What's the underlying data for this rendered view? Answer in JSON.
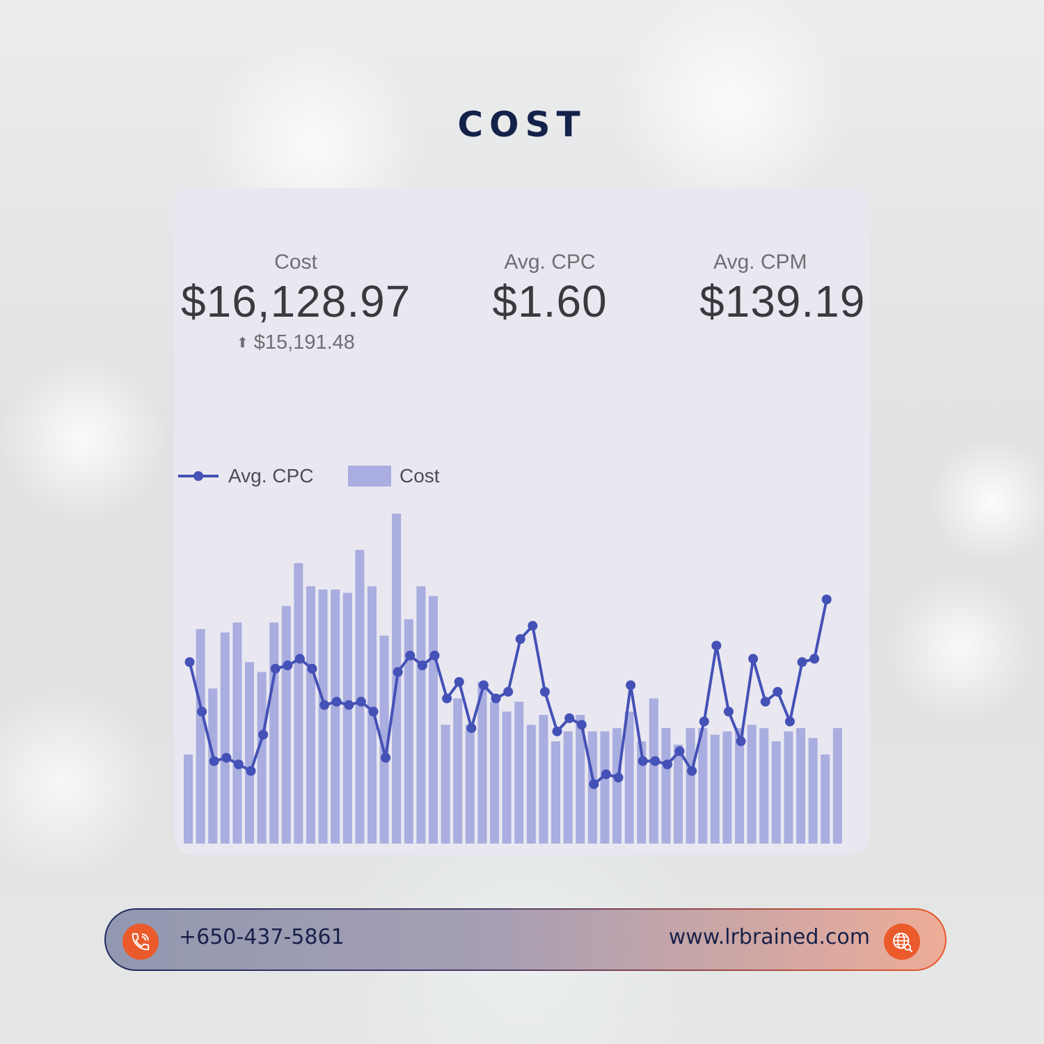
{
  "title": "COST",
  "metrics": {
    "cost": {
      "label": "Cost",
      "value": "$16,128.97",
      "compare": "$15,191.48"
    },
    "avg_cpc": {
      "label": "Avg. CPC",
      "value": "$1.60"
    },
    "avg_cpm": {
      "label": "Avg. CPM",
      "value": "$139.19"
    }
  },
  "legend": {
    "line_label": "Avg. CPC",
    "bar_label": "Cost"
  },
  "colors": {
    "bar": "#a9addf",
    "line": "#4451b6",
    "title": "#14224a",
    "accent": "#ea5a2b"
  },
  "chart_data": {
    "type": "bar",
    "x": [
      1,
      2,
      3,
      4,
      5,
      6,
      7,
      8,
      9,
      10,
      11,
      12,
      13,
      14,
      15,
      16,
      17,
      18,
      19,
      20,
      21,
      22,
      23,
      24,
      25,
      26,
      27,
      28,
      29,
      30,
      31,
      32,
      33,
      34,
      35,
      36,
      37,
      38,
      39,
      40,
      41,
      42,
      43,
      44,
      45,
      46,
      47,
      48,
      49,
      50,
      51,
      52,
      53,
      54
    ],
    "series": [
      {
        "name": "Cost",
        "type": "bar",
        "values": [
          27,
          65,
          47,
          64,
          67,
          55,
          52,
          67,
          72,
          85,
          78,
          77,
          77,
          76,
          89,
          78,
          63,
          100,
          68,
          78,
          75,
          36,
          44,
          36,
          49,
          43,
          40,
          43,
          36,
          39,
          31,
          34,
          39,
          34,
          34,
          35,
          40,
          31,
          44,
          35,
          30,
          35,
          35,
          33,
          34,
          35,
          36,
          35,
          31,
          34,
          35,
          32,
          27,
          35
        ]
      },
      {
        "name": "Avg. CPC",
        "type": "line",
        "values": [
          55,
          40,
          25,
          26,
          24,
          22,
          33,
          53,
          54,
          56,
          53,
          42,
          43,
          42,
          43,
          40,
          26,
          52,
          57,
          54,
          57,
          44,
          49,
          35,
          48,
          44,
          46,
          62,
          66,
          46,
          34,
          38,
          36,
          18,
          21,
          20,
          48,
          25,
          25,
          24,
          28,
          22,
          37,
          60,
          40,
          31,
          56,
          43,
          46,
          37,
          55,
          56,
          74,
          null
        ]
      }
    ],
    "ylim": [
      0,
      100
    ],
    "legend_position": "top-left",
    "grid": false
  },
  "contact": {
    "phone": "+650-437-5861",
    "website": "www.lrbrained.com"
  },
  "icons": {
    "phone": "phone-icon",
    "globe": "globe-icon"
  }
}
